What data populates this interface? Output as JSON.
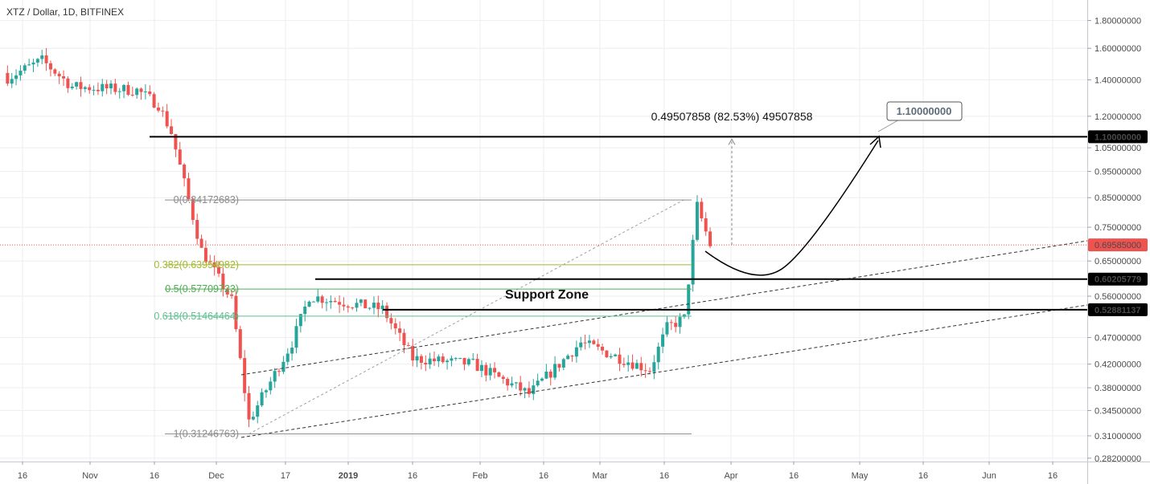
{
  "title": "XTZ / Dollar, 1D, BITFINEX",
  "colors": {
    "up": "#26a69a",
    "down": "#ef5350",
    "fib_main": "#8c8c8c",
    "fib_382": "#a3b82f",
    "fib_5": "#4caf50",
    "fib_618": "#5fbf8f",
    "last_price": "#ef5350"
  },
  "chart_data": {
    "type": "candlestick",
    "title": "XTZ / Dollar, 1D, BITFINEX",
    "y_scale": "log",
    "ylim": [
      0.278,
      1.95
    ],
    "y_ticks": [
      "1.80000000",
      "1.60000000",
      "1.40000000",
      "1.20000000",
      "1.05000000",
      "0.95000000",
      "0.85000000",
      "0.75000000",
      "0.65000000",
      "0.56000000",
      "0.47000000",
      "0.42000000",
      "0.38000000",
      "0.34500000",
      "0.31000000",
      "0.28200000"
    ],
    "x_ticks": [
      "16",
      "Nov",
      "16",
      "Dec",
      "17",
      "2019",
      "16",
      "Feb",
      "16",
      "Mar",
      "16",
      "Apr",
      "16",
      "May",
      "16",
      "Jun",
      "16"
    ],
    "grid": true,
    "segments": [
      {
        "from": [
          "2018-10-11",
          1.4
        ],
        "to": [
          "2018-10-20",
          1.52
        ]
      },
      {
        "from": [
          "2018-10-20",
          1.52
        ],
        "to": [
          "2018-10-27",
          1.36
        ]
      },
      {
        "from": [
          "2018-10-27",
          1.36
        ],
        "to": [
          "2018-11-11",
          1.34
        ]
      },
      {
        "from": [
          "2018-11-11",
          1.34
        ],
        "to": [
          "2018-11-16",
          1.26
        ]
      },
      {
        "from": [
          "2018-11-16",
          1.26
        ],
        "to": [
          "2018-11-19",
          1.12
        ]
      },
      {
        "from": [
          "2018-11-19",
          1.12
        ],
        "to": [
          "2018-11-26",
          0.68
        ]
      },
      {
        "from": [
          "2018-11-26",
          0.68
        ],
        "to": [
          "2018-12-03",
          0.55
        ]
      },
      {
        "from": [
          "2018-12-03",
          0.55
        ],
        "to": [
          "2018-12-07",
          0.33
        ]
      },
      {
        "from": [
          "2018-12-07",
          0.33
        ],
        "to": [
          "2018-12-17",
          0.46
        ]
      },
      {
        "from": [
          "2018-12-17",
          0.46
        ],
        "to": [
          "2018-12-21",
          0.56
        ]
      },
      {
        "from": [
          "2018-12-21",
          0.56
        ],
        "to": [
          "2019-01-07",
          0.53
        ]
      },
      {
        "from": [
          "2019-01-07",
          0.53
        ],
        "to": [
          "2019-01-14",
          0.43
        ]
      },
      {
        "from": [
          "2019-01-14",
          0.43
        ],
        "to": [
          "2019-01-28",
          0.42
        ]
      },
      {
        "from": [
          "2019-01-28",
          0.42
        ],
        "to": [
          "2019-02-10",
          0.37
        ]
      },
      {
        "from": [
          "2019-02-10",
          0.37
        ],
        "to": [
          "2019-02-22",
          0.46
        ]
      },
      {
        "from": [
          "2019-02-22",
          0.46
        ],
        "to": [
          "2019-03-10",
          0.41
        ]
      },
      {
        "from": [
          "2019-03-10",
          0.41
        ],
        "to": [
          "2019-03-14",
          0.49
        ]
      },
      {
        "from": [
          "2019-03-14",
          0.49
        ],
        "to": [
          "2019-03-18",
          0.51
        ]
      },
      {
        "from": [
          "2019-03-18",
          0.51
        ],
        "to": [
          "2019-03-21",
          0.82
        ]
      },
      {
        "from": [
          "2019-03-21",
          0.82
        ],
        "to": [
          "2019-03-24",
          0.696
        ]
      }
    ],
    "annotations": {
      "fib_levels": [
        {
          "label": "0(0.84172683)",
          "value": 0.84172683,
          "color_key": "fib_main"
        },
        {
          "label": "0.382(0.63954982)",
          "value": 0.63954982,
          "color_key": "fib_382"
        },
        {
          "label": "0.5(0.57709723)",
          "value": 0.57709723,
          "color_key": "fib_5"
        },
        {
          "label": "0.618(0.51464464)",
          "value": 0.51464464,
          "color_key": "fib_618"
        },
        {
          "label": "1(0.31246763)",
          "value": 0.31246763,
          "color_key": "fib_main"
        }
      ],
      "horizontal_lines": [
        {
          "value": 1.1,
          "label": "1.10000000"
        },
        {
          "value": 0.60205779,
          "label": "0.60205779"
        },
        {
          "value": 0.52881137,
          "label": "0.52881137"
        }
      ],
      "last_price": {
        "value": 0.69585,
        "label": "0.69585000"
      },
      "measure_text": "0.49507858 (82.53%) 49507858",
      "target_label": "1.10000000",
      "support_zone_label": "Support Zone"
    }
  }
}
